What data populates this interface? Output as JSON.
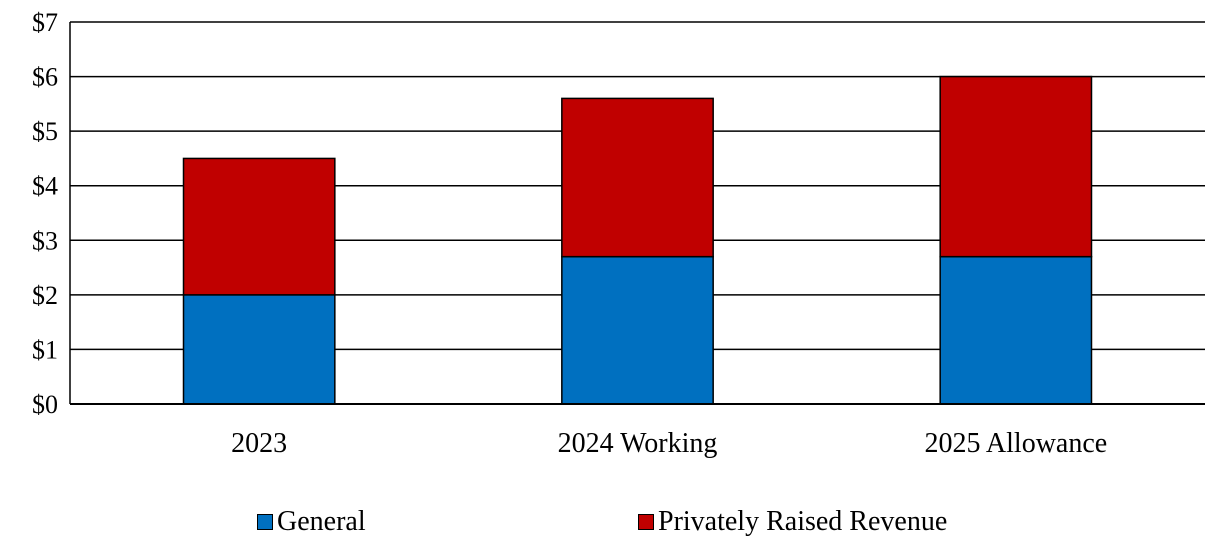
{
  "chart_data": {
    "type": "bar",
    "stacked": true,
    "categories": [
      "2023",
      "2024 Working",
      "2025 Allowance"
    ],
    "series": [
      {
        "name": "General",
        "values": [
          2.0,
          2.7,
          2.7
        ],
        "color": "#0070C0"
      },
      {
        "name": "Privately Raised Revenue",
        "values": [
          2.5,
          2.9,
          3.3
        ],
        "color": "#C00000"
      }
    ],
    "y_ticks": [
      "$0",
      "$1",
      "$2",
      "$3",
      "$4",
      "$5",
      "$6",
      "$7"
    ],
    "ylim": [
      0,
      7
    ],
    "grid": true,
    "legend_position": "bottom"
  }
}
